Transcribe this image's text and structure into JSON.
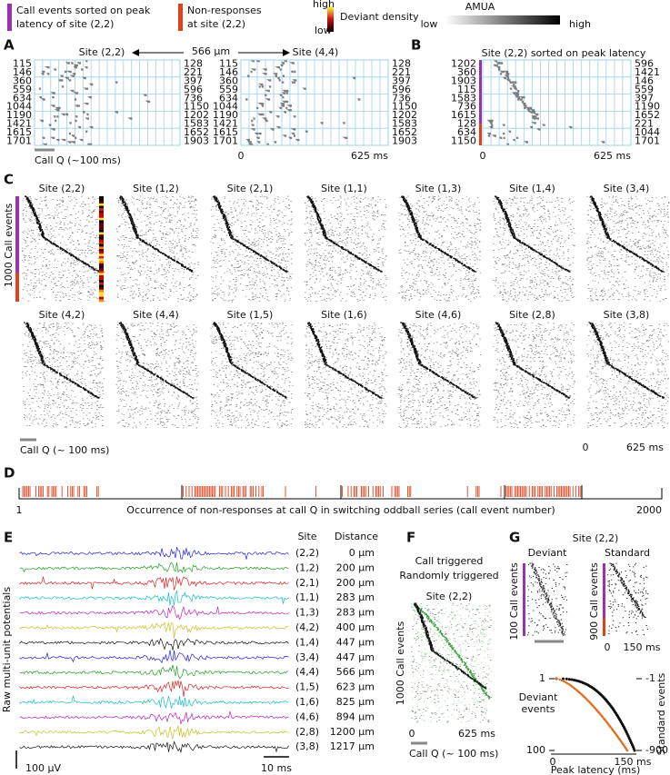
{
  "legend": {
    "sorted_line1": "Call events sorted on peak",
    "sorted_line2": "latency of site (2,2)",
    "nonresp_line1": "Non-responses",
    "nonresp_line2": "at site (2,2)",
    "density_high": "high",
    "density_low": "low",
    "density_label": "Deviant density",
    "amua": "AMUA",
    "amua_low": "low",
    "amua_high": "high"
  },
  "panel_a": {
    "letter": "A",
    "site_left": "Site (2,2)",
    "distance": "566 µm",
    "site_right": "Site (4,4)",
    "rows_left": [
      "115",
      "146",
      "360",
      "559",
      "634",
      "1044",
      "1190",
      "1421",
      "1615",
      "1701"
    ],
    "rows_right": [
      "128",
      "221",
      "397",
      "596",
      "736",
      "1150",
      "1202",
      "1583",
      "1652",
      "1903"
    ],
    "scale": "Call Q (~100 ms)",
    "x_start": "0",
    "x_end": "625 ms"
  },
  "panel_b": {
    "letter": "B",
    "title": "Site (2,2) sorted on peak latency",
    "rows_left": [
      "1202",
      "360",
      "1903",
      "115",
      "1583",
      "736",
      "1615",
      "128",
      "634",
      "1150"
    ],
    "rows_right": [
      "596",
      "1421",
      "146",
      "559",
      "397",
      "1190",
      "1652",
      "221",
      "1044",
      "1701"
    ],
    "x_start": "0",
    "x_end": "625 ms"
  },
  "panel_c": {
    "letter": "C",
    "y_label": "1000 Call events",
    "sites_row1": [
      "Site (2,2)",
      "Site (1,2)",
      "Site (2,1)",
      "Site (1,1)",
      "Site (1,3)",
      "Site (1,4)",
      "Site (3,4)"
    ],
    "sites_row2": [
      "Site (4,2)",
      "Site (4,4)",
      "Site (1,5)",
      "Site (1,6)",
      "Site (4,6)",
      "Site (2,8)",
      "Site (3,8)"
    ],
    "scale": "Call Q (~ 100 ms)",
    "x_start": "0",
    "x_end": "625 ms"
  },
  "panel_d": {
    "letter": "D",
    "start": "1",
    "end": "2000",
    "caption": "Occurrence of non-responses at call Q in switching oddball series (call event number)"
  },
  "panel_e": {
    "letter": "E",
    "y_label": "Raw multi-unit potentials",
    "site_header": "Site",
    "distance_header": "Distance",
    "sites": [
      "(2,2)",
      "(1,2)",
      "(2,1)",
      "(1,1)",
      "(1,3)",
      "(4,2)",
      "(1,4)",
      "(3,4)",
      "(4,4)",
      "(1,5)",
      "(1,6)",
      "(4,6)",
      "(2,8)",
      "(3,8)"
    ],
    "distances": [
      "0 µm",
      "200 µm",
      "200 µm",
      "283 µm",
      "283 µm",
      "400 µm",
      "447 µm",
      "447 µm",
      "566 µm",
      "623 µm",
      "825 µm",
      "894 µm",
      "1200 µm",
      "1217 µm"
    ],
    "scale_v": "100 µV",
    "scale_t": "10 ms"
  },
  "panel_f": {
    "letter": "F",
    "call_triggered": "Call triggered",
    "random_triggered": "Randomly triggered",
    "site": "Site (2,2)",
    "y_label": "1000 Call events",
    "x_start": "0",
    "x_end": "625 ms",
    "scale": "Call Q (~ 100 ms)"
  },
  "panel_g": {
    "letter": "G",
    "site": "Site (2,2)",
    "deviant": "Deviant",
    "standard": "Standard",
    "dev_y_label": "100 Call events",
    "std_y_label": "900 Call events",
    "x_start": "0",
    "x_end": "150 ms",
    "dev_top": "1",
    "dev_bottom": "100",
    "std_top": "-1",
    "std_bottom": "-900",
    "dev_axis_line1": "Deviant",
    "dev_axis_line2": "events",
    "std_axis": "Standard events",
    "lat_start": "0",
    "lat_end": "150 ms",
    "x_label": "Peak latency (ms)"
  }
}
